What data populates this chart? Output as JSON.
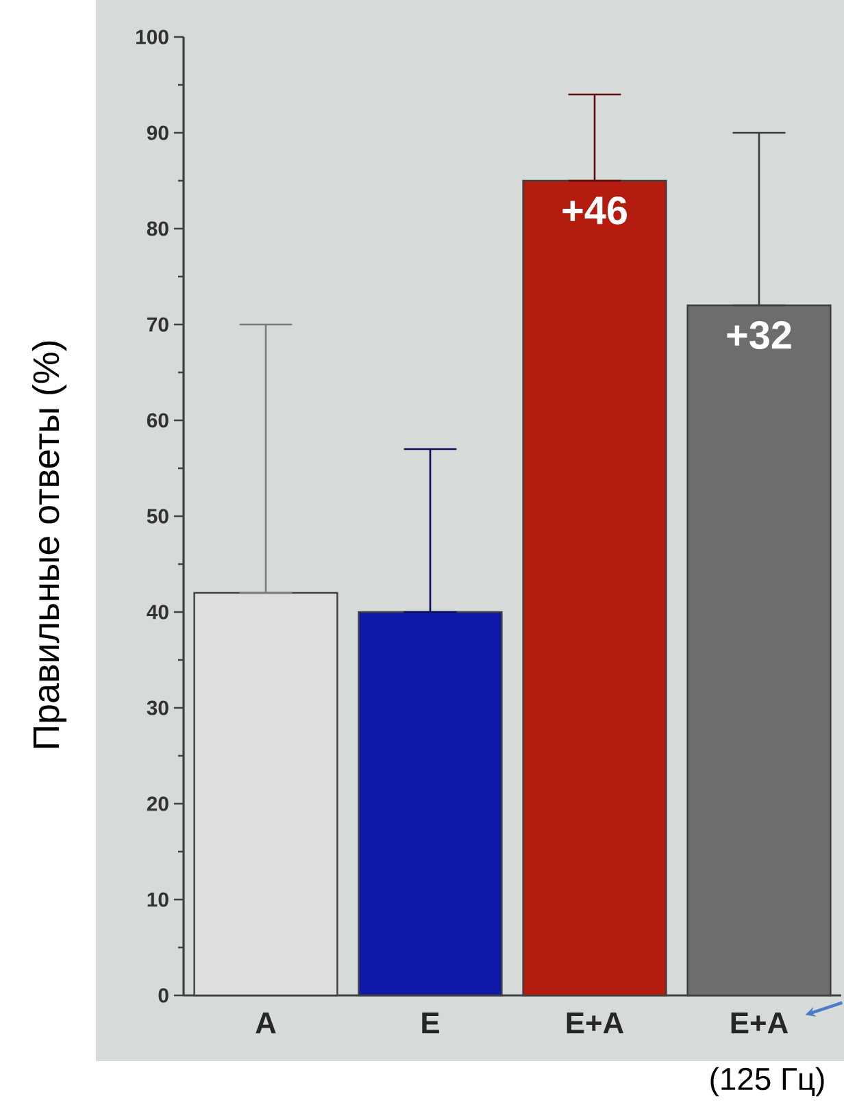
{
  "chart_data": {
    "type": "bar",
    "ylabel": "Правильные ответы (%)",
    "categories": [
      "A",
      "E",
      "E+A",
      "E+A"
    ],
    "values": [
      42,
      40,
      85,
      72
    ],
    "colors": [
      "#dcdfde",
      "#1018a8",
      "#b41c10",
      "#6b6d6f"
    ],
    "errors": [
      [
        42,
        70
      ],
      [
        40,
        57
      ],
      [
        85,
        94
      ],
      [
        72,
        90
      ]
    ],
    "ylim": [
      0,
      100
    ],
    "yticks": [
      0,
      10,
      20,
      30,
      40,
      50,
      60,
      70,
      80,
      90,
      100
    ],
    "annotations": [
      "(125 Гц)",
      "+46",
      "+32"
    ]
  }
}
